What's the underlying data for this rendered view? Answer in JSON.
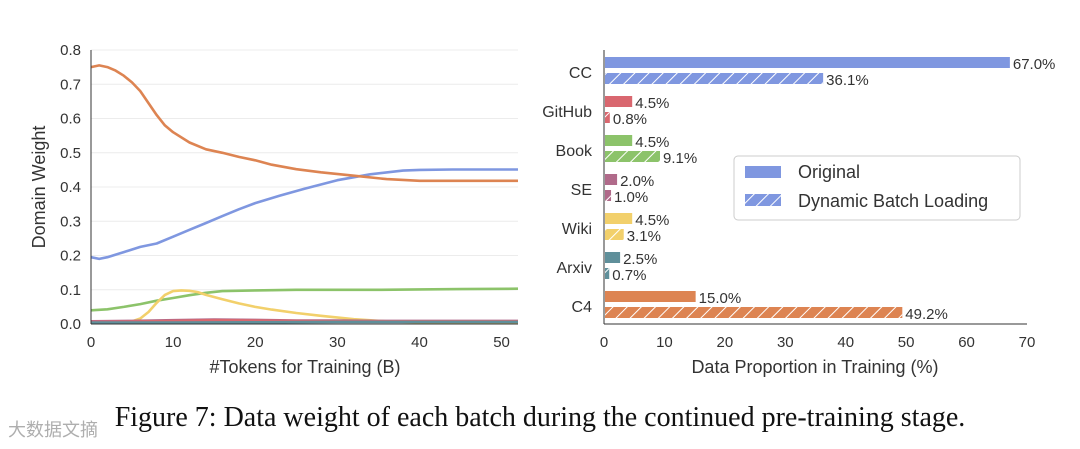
{
  "caption": "Figure 7: Data weight of each batch during the continued pre-training stage.",
  "watermark": "大数据文摘",
  "chart_data": [
    {
      "type": "line",
      "xlabel": "#Tokens for Training (B)",
      "ylabel": "Domain Weight",
      "xlim": [
        0,
        52
      ],
      "ylim": [
        0,
        0.8
      ],
      "xticks": [
        "0",
        "10",
        "20",
        "30",
        "40",
        "50"
      ],
      "yticks": [
        "0.0",
        "0.1",
        "0.2",
        "0.3",
        "0.4",
        "0.5",
        "0.6",
        "0.7",
        "0.8"
      ],
      "series": [
        {
          "name": "CC",
          "color": "#7f97e0",
          "x": [
            0,
            1,
            2,
            4,
            6,
            8,
            10,
            12,
            14,
            16,
            18,
            20,
            23,
            26,
            30,
            34,
            38,
            40,
            44,
            48,
            52
          ],
          "y": [
            0.195,
            0.19,
            0.195,
            0.21,
            0.225,
            0.235,
            0.255,
            0.275,
            0.295,
            0.315,
            0.335,
            0.353,
            0.375,
            0.395,
            0.42,
            0.437,
            0.448,
            0.45,
            0.451,
            0.451,
            0.451
          ]
        },
        {
          "name": "C4",
          "color": "#dd8452",
          "x": [
            0,
            1,
            2,
            3,
            4,
            5,
            6,
            7,
            8,
            9,
            10,
            12,
            14,
            16,
            18,
            20,
            22,
            25,
            28,
            32,
            36,
            40,
            44,
            48,
            52
          ],
          "y": [
            0.75,
            0.755,
            0.75,
            0.74,
            0.725,
            0.705,
            0.68,
            0.645,
            0.61,
            0.58,
            0.56,
            0.53,
            0.51,
            0.5,
            0.488,
            0.478,
            0.465,
            0.452,
            0.443,
            0.433,
            0.423,
            0.418,
            0.418,
            0.418,
            0.418
          ]
        },
        {
          "name": "Book",
          "color": "#8cc36a",
          "x": [
            0,
            2,
            4,
            6,
            8,
            10,
            12,
            14,
            16,
            20,
            25,
            30,
            35,
            40,
            45,
            52
          ],
          "y": [
            0.04,
            0.043,
            0.05,
            0.058,
            0.068,
            0.076,
            0.084,
            0.091,
            0.096,
            0.098,
            0.1,
            0.1,
            0.1,
            0.101,
            0.102,
            0.103
          ]
        },
        {
          "name": "Wiki",
          "color": "#f2d06b",
          "x": [
            0,
            2,
            4,
            5,
            6,
            7,
            8,
            9,
            10,
            11,
            12,
            13,
            14,
            16,
            18,
            20,
            22,
            25,
            28,
            32,
            36,
            40,
            45,
            52
          ],
          "y": [
            0.005,
            0.005,
            0.006,
            0.008,
            0.016,
            0.035,
            0.062,
            0.085,
            0.096,
            0.098,
            0.097,
            0.093,
            0.085,
            0.072,
            0.06,
            0.05,
            0.042,
            0.032,
            0.024,
            0.014,
            0.008,
            0.005,
            0.005,
            0.005
          ]
        },
        {
          "name": "SE",
          "color": "#b06a8a",
          "x": [
            0,
            5,
            10,
            15,
            20,
            25,
            30,
            35,
            40,
            45,
            52
          ],
          "y": [
            0.008,
            0.009,
            0.011,
            0.013,
            0.012,
            0.01,
            0.01,
            0.009,
            0.009,
            0.009,
            0.009
          ]
        },
        {
          "name": "GitHub",
          "color": "#d9676f",
          "x": [
            0,
            5,
            10,
            15,
            20,
            25,
            30,
            35,
            40,
            45,
            52
          ],
          "y": [
            0.006,
            0.007,
            0.009,
            0.011,
            0.01,
            0.009,
            0.008,
            0.008,
            0.008,
            0.008,
            0.008
          ]
        },
        {
          "name": "Arxiv",
          "color": "#5f8f9a",
          "x": [
            0,
            10,
            20,
            30,
            40,
            52
          ],
          "y": [
            0.004,
            0.004,
            0.005,
            0.006,
            0.006,
            0.006
          ]
        }
      ]
    },
    {
      "type": "bar",
      "orientation": "horizontal",
      "xlabel": "Data Proportion in Training (%)",
      "xlim": [
        0,
        70
      ],
      "xticks": [
        "0",
        "10",
        "20",
        "30",
        "40",
        "50",
        "60",
        "70"
      ],
      "categories": [
        "CC",
        "GitHub",
        "Book",
        "SE",
        "Wiki",
        "Arxiv",
        "C4"
      ],
      "colors": [
        "#7f97e0",
        "#d9676f",
        "#8cc36a",
        "#b06a8a",
        "#f2d06b",
        "#5f8f9a",
        "#dd8452"
      ],
      "series": [
        {
          "name": "Original",
          "hatch": false,
          "values": [
            67.0,
            4.5,
            4.5,
            2.0,
            4.5,
            2.5,
            15.0
          ],
          "labels": [
            "67.0%",
            "4.5%",
            "4.5%",
            "2.0%",
            "4.5%",
            "2.5%",
            "15.0%"
          ]
        },
        {
          "name": "Dynamic Batch Loading",
          "hatch": true,
          "values": [
            36.1,
            0.8,
            9.1,
            1.0,
            3.1,
            0.7,
            49.2
          ],
          "labels": [
            "36.1%",
            "0.8%",
            "9.1%",
            "1.0%",
            "3.1%",
            "0.7%",
            "49.2%"
          ]
        }
      ],
      "legend": {
        "location": "center-right",
        "entries": [
          "Original",
          "Dynamic Batch Loading"
        ]
      }
    }
  ]
}
